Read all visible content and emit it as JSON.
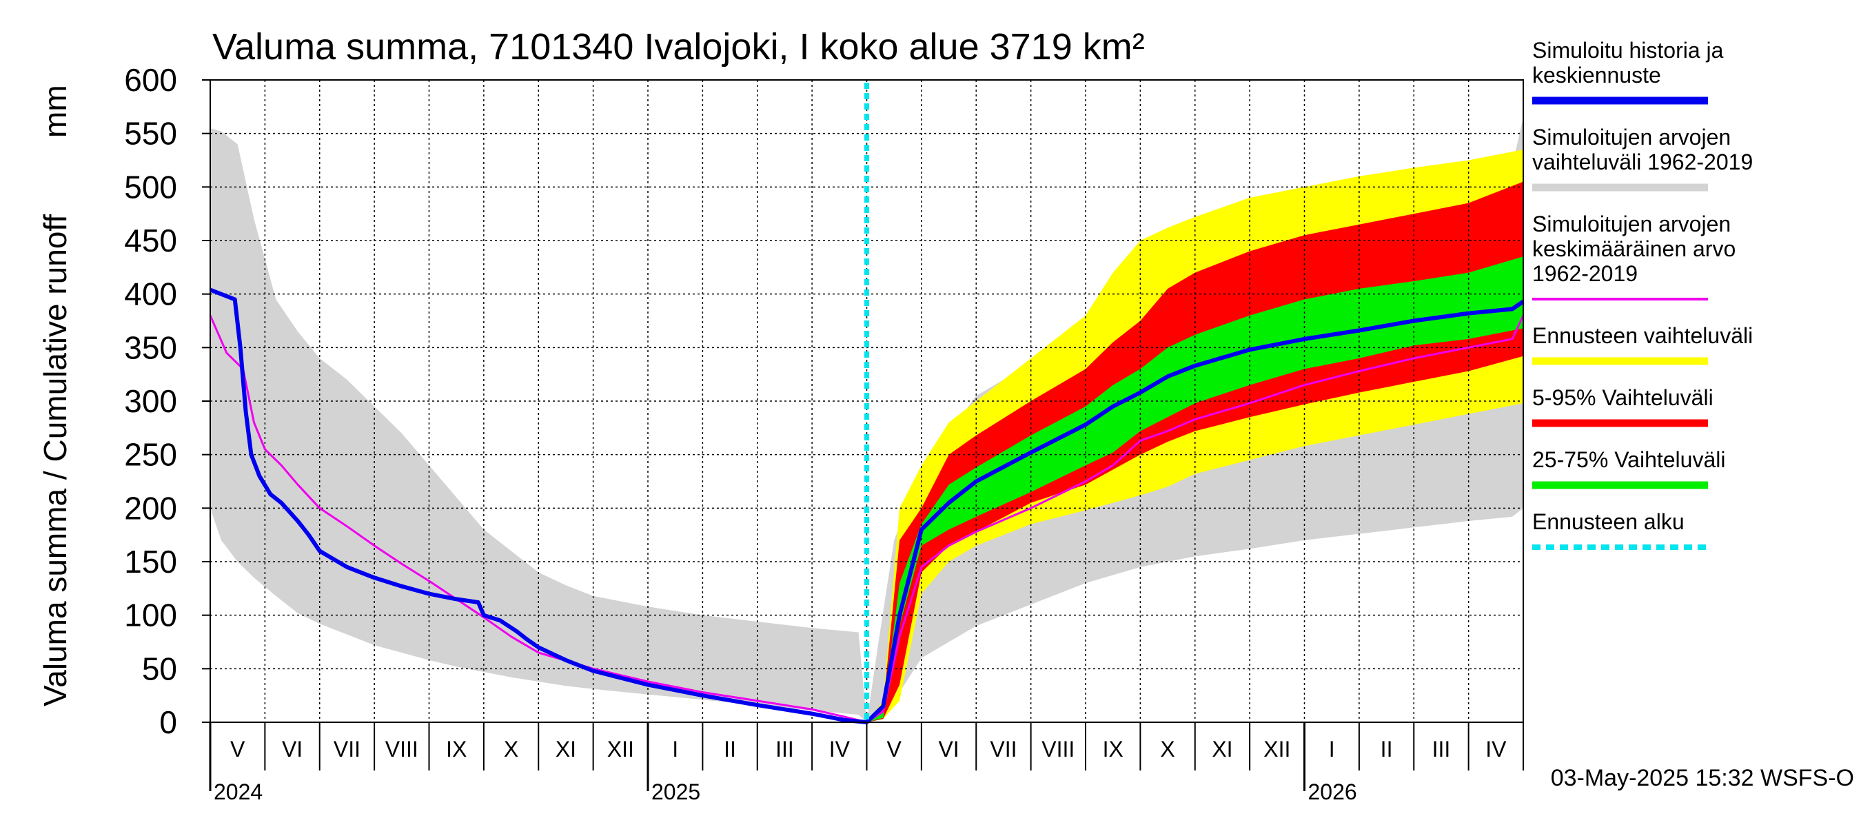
{
  "chart_data": {
    "type": "area",
    "title": "Valuma summa, 7101340 Ivalojoki, I koko alue 3719 km²",
    "ylabel": "Valuma summa / Cumulative runoff",
    "yunit": "mm",
    "ylim": [
      0,
      600
    ],
    "yticks": [
      0,
      50,
      100,
      150,
      200,
      250,
      300,
      350,
      400,
      450,
      500,
      550,
      600
    ],
    "grid": true,
    "x_range_months": [
      0,
      24
    ],
    "month_labels": [
      "V",
      "VI",
      "VII",
      "VIII",
      "IX",
      "X",
      "XI",
      "XII",
      "I",
      "II",
      "III",
      "IV",
      "V",
      "VI",
      "VII",
      "VIII",
      "IX",
      "X",
      "XI",
      "XII",
      "I",
      "II",
      "III",
      "IV"
    ],
    "year_labels": [
      {
        "label": "2024",
        "month_index": 0
      },
      {
        "label": "2025",
        "month_index": 8
      },
      {
        "label": "2026",
        "month_index": 20
      }
    ],
    "forecast_start_month": 12.0,
    "timestamp": "03-May-2025 15:32 WSFS-O",
    "legend": [
      {
        "label": "Simuloitu historia ja keskiennuste",
        "lines": [
          "Simuloitu historia ja",
          "keskiennuste"
        ],
        "color": "#0000ee",
        "style": "solid"
      },
      {
        "label": "Simuloitujen arvojen vaihteluväli 1962-2019",
        "lines": [
          "Simuloitujen arvojen",
          "vaihteluväli 1962-2019"
        ],
        "color": "#d3d3d3",
        "style": "solid"
      },
      {
        "label": "Simuloitujen arvojen keskimääräinen arvo 1962-2019",
        "lines": [
          "Simuloitujen arvojen",
          "keskimääräinen arvo",
          "   1962-2019"
        ],
        "color": "#ee00ee",
        "style": "thin"
      },
      {
        "label": "Ennusteen vaihteluväli",
        "lines": [
          "Ennusteen vaihteluväli"
        ],
        "color": "#ffff00",
        "style": "solid"
      },
      {
        "label": "5-95% Vaihteluväli",
        "lines": [
          "5-95% Vaihteluväli"
        ],
        "color": "#ff0000",
        "style": "solid"
      },
      {
        "label": "25-75% Vaihteluväli",
        "lines": [
          "25-75% Vaihteluväli"
        ],
        "color": "#00ee00",
        "style": "solid"
      },
      {
        "label": "Ennusteen alku",
        "lines": [
          "Ennusteen alku"
        ],
        "color": "#00e5ee",
        "style": "dashed"
      }
    ],
    "series": [
      {
        "name": "hist_range",
        "kind": "band",
        "color": "#d3d3d3",
        "x": [
          0,
          0.2,
          0.5,
          0.8,
          1.2,
          1.6,
          2,
          2.5,
          3,
          3.5,
          4,
          4.5,
          5,
          5.5,
          6,
          6.5,
          7,
          8,
          9,
          10,
          11,
          11.85,
          12,
          12.2,
          12.5,
          13,
          13.5,
          14,
          15,
          16,
          17,
          18,
          19,
          20,
          21,
          22,
          23,
          23.8,
          24
        ],
        "upper": [
          555,
          552,
          540,
          470,
          395,
          365,
          340,
          320,
          295,
          270,
          240,
          210,
          180,
          160,
          140,
          128,
          118,
          108,
          100,
          94,
          88,
          84,
          0,
          70,
          170,
          235,
          270,
          305,
          335,
          360,
          380,
          420,
          450,
          470,
          488,
          500,
          510,
          520,
          565
        ],
        "lower": [
          200,
          170,
          150,
          135,
          118,
          102,
          92,
          82,
          72,
          65,
          58,
          52,
          47,
          42,
          38,
          34,
          31,
          26,
          21,
          16,
          11,
          7,
          0,
          3,
          20,
          60,
          75,
          90,
          110,
          130,
          145,
          155,
          162,
          170,
          176,
          182,
          188,
          192,
          200
        ]
      },
      {
        "name": "ens_range",
        "kind": "band",
        "color": "#ffff00",
        "x": [
          12,
          12.3,
          12.6,
          13,
          13.5,
          14,
          15,
          16,
          16.5,
          17,
          17.5,
          18,
          19,
          20,
          21,
          22,
          23,
          24
        ],
        "upper": [
          0,
          20,
          200,
          240,
          280,
          300,
          340,
          380,
          420,
          450,
          462,
          472,
          490,
          500,
          510,
          518,
          525,
          535
        ],
        "lower": [
          0,
          3,
          20,
          120,
          150,
          165,
          185,
          198,
          205,
          212,
          220,
          232,
          245,
          258,
          268,
          278,
          288,
          298
        ]
      },
      {
        "name": "p5_95",
        "kind": "band",
        "color": "#ff0000",
        "x": [
          12,
          12.3,
          12.6,
          13,
          13.5,
          14,
          15,
          16,
          16.5,
          17,
          17.5,
          18,
          19,
          20,
          21,
          22,
          23,
          24
        ],
        "upper": [
          0,
          15,
          170,
          200,
          250,
          268,
          300,
          330,
          355,
          375,
          405,
          420,
          440,
          455,
          465,
          475,
          485,
          505
        ],
        "lower": [
          0,
          3,
          35,
          140,
          165,
          178,
          205,
          222,
          236,
          250,
          262,
          272,
          285,
          297,
          308,
          318,
          328,
          342
        ]
      },
      {
        "name": "p25_75",
        "kind": "band",
        "color": "#00ee00",
        "x": [
          12,
          12.3,
          12.6,
          13,
          13.5,
          14,
          15,
          16,
          16.5,
          17,
          17.5,
          18,
          19,
          20,
          21,
          22,
          23,
          24
        ],
        "upper": [
          0,
          10,
          130,
          185,
          222,
          238,
          268,
          295,
          315,
          330,
          350,
          362,
          380,
          395,
          405,
          412,
          420,
          435
        ],
        "lower": [
          0,
          4,
          90,
          165,
          180,
          192,
          215,
          240,
          252,
          272,
          285,
          298,
          315,
          330,
          340,
          352,
          358,
          368
        ]
      },
      {
        "name": "mean",
        "kind": "line",
        "color": "#ee00ee",
        "width": 3,
        "x": [
          0,
          0.3,
          0.6,
          0.8,
          1.0,
          1.3,
          1.6,
          2,
          2.5,
          3,
          3.5,
          4,
          4.5,
          5,
          5.5,
          6,
          7,
          8,
          9,
          10,
          11,
          11.6,
          12,
          12.3,
          12.6,
          13,
          13.5,
          14,
          15,
          16,
          16.5,
          17,
          17.5,
          18,
          19,
          20,
          21,
          22,
          23,
          23.8,
          24
        ],
        "y": [
          380,
          345,
          330,
          280,
          255,
          240,
          222,
          200,
          183,
          165,
          148,
          132,
          115,
          98,
          80,
          65,
          50,
          38,
          28,
          20,
          12,
          5,
          0,
          10,
          80,
          145,
          165,
          178,
          200,
          225,
          240,
          263,
          272,
          283,
          298,
          315,
          328,
          340,
          350,
          358,
          380
        ]
      },
      {
        "name": "sim_hist_forecast",
        "kind": "line",
        "color": "#0000ee",
        "width": 6,
        "x": [
          0,
          0.45,
          0.55,
          0.65,
          0.75,
          0.9,
          1.1,
          1.3,
          1.6,
          1.8,
          2,
          2.5,
          3,
          3.5,
          4,
          4.5,
          4.9,
          5.0,
          5.3,
          5.6,
          5.8,
          6,
          6.5,
          7,
          8,
          9,
          10,
          11,
          11.6,
          12,
          12.3,
          12.6,
          13,
          13.5,
          14,
          15,
          16,
          16.5,
          17,
          17.5,
          18,
          19,
          20,
          21,
          22,
          23,
          23.8,
          24
        ],
        "y": [
          404,
          395,
          350,
          290,
          250,
          230,
          213,
          205,
          188,
          175,
          160,
          145,
          135,
          127,
          120,
          115,
          112,
          100,
          95,
          85,
          77,
          70,
          58,
          48,
          35,
          25,
          16,
          8,
          2,
          0,
          15,
          100,
          180,
          205,
          225,
          252,
          278,
          295,
          308,
          323,
          333,
          348,
          358,
          366,
          375,
          382,
          386,
          393
        ]
      }
    ]
  }
}
